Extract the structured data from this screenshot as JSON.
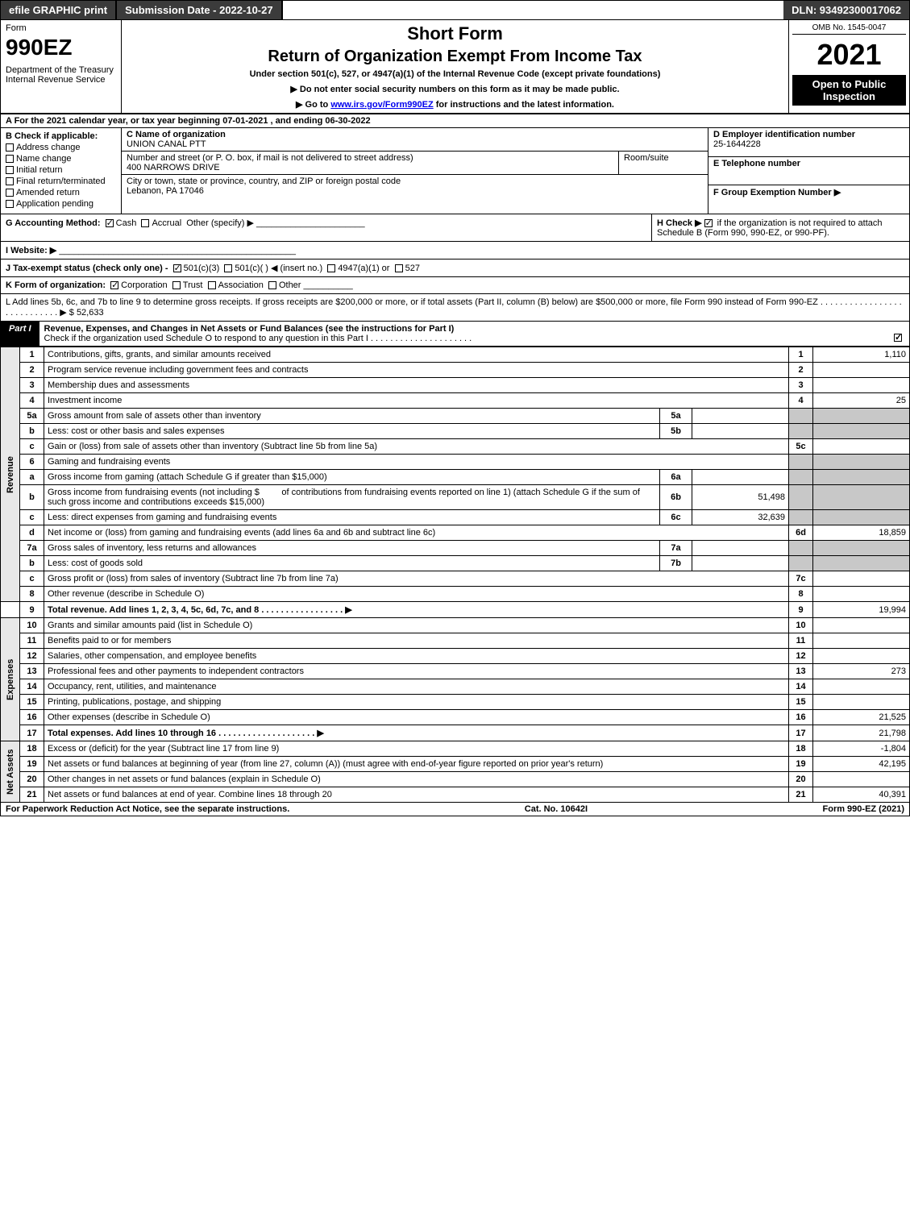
{
  "topbar": {
    "efile": "efile GRAPHIC print",
    "submission": "Submission Date - 2022-10-27",
    "dln": "DLN: 93492300017062"
  },
  "header": {
    "form_word": "Form",
    "form_code": "990EZ",
    "dept": "Department of the Treasury\nInternal Revenue Service",
    "short_form": "Short Form",
    "title": "Return of Organization Exempt From Income Tax",
    "under": "Under section 501(c), 527, or 4947(a)(1) of the Internal Revenue Code (except private foundations)",
    "arrow1": "▶ Do not enter social security numbers on this form as it may be made public.",
    "arrow2_pre": "▶ Go to ",
    "arrow2_link": "www.irs.gov/Form990EZ",
    "arrow2_post": " for instructions and the latest information.",
    "omb": "OMB No. 1545-0047",
    "year": "2021",
    "open": "Open to Public Inspection"
  },
  "sectionA": "A  For the 2021 calendar year, or tax year beginning 07-01-2021 , and ending 06-30-2022",
  "B": {
    "label": "B  Check if applicable:",
    "items": [
      "Address change",
      "Name change",
      "Initial return",
      "Final return/terminated",
      "Amended return",
      "Application pending"
    ]
  },
  "C": {
    "name_label": "C Name of organization",
    "name": "UNION CANAL PTT",
    "addr_label": "Number and street (or P. O. box, if mail is not delivered to street address)",
    "addr": "400 NARROWS DRIVE",
    "room_label": "Room/suite",
    "city_label": "City or town, state or province, country, and ZIP or foreign postal code",
    "city": "Lebanon, PA  17046"
  },
  "D": {
    "label": "D Employer identification number",
    "value": "25-1644228"
  },
  "E": {
    "label": "E Telephone number",
    "value": ""
  },
  "F": {
    "label": "F Group Exemption Number  ▶",
    "value": ""
  },
  "G": {
    "label": "G Accounting Method:",
    "cash": "Cash",
    "accrual": "Accrual",
    "other": "Other (specify) ▶"
  },
  "H": {
    "label": "H  Check ▶",
    "text": "if the organization is not required to attach Schedule B (Form 990, 990-EZ, or 990-PF)."
  },
  "I": {
    "label": "I Website: ▶",
    "value": ""
  },
  "J": {
    "label": "J Tax-exempt status (check only one) -",
    "opt1": "501(c)(3)",
    "opt2": "501(c)(  ) ◀ (insert no.)",
    "opt3": "4947(a)(1) or",
    "opt4": "527"
  },
  "K": {
    "label": "K Form of organization:",
    "opts": [
      "Corporation",
      "Trust",
      "Association",
      "Other"
    ]
  },
  "L": {
    "text": "L Add lines 5b, 6c, and 7b to line 9 to determine gross receipts. If gross receipts are $200,000 or more, or if total assets (Part II, column (B) below) are $500,000 or more, file Form 990 instead of Form 990-EZ . . . . . . . . . . . . . . . . . . . . . . . . . . . . ▶ $",
    "value": "52,633"
  },
  "part1": {
    "badge": "Part I",
    "title": "Revenue, Expenses, and Changes in Net Assets or Fund Balances (see the instructions for Part I)",
    "check_o": "Check if the organization used Schedule O to respond to any question in this Part I . . . . . . . . . . . . . . . . . . . . ."
  },
  "sidelabels": {
    "revenue": "Revenue",
    "expenses": "Expenses",
    "netassets": "Net Assets"
  },
  "lines": {
    "l1": {
      "no": "1",
      "desc": "Contributions, gifts, grants, and similar amounts received",
      "rn": "1",
      "val": "1,110"
    },
    "l2": {
      "no": "2",
      "desc": "Program service revenue including government fees and contracts",
      "rn": "2",
      "val": ""
    },
    "l3": {
      "no": "3",
      "desc": "Membership dues and assessments",
      "rn": "3",
      "val": ""
    },
    "l4": {
      "no": "4",
      "desc": "Investment income",
      "rn": "4",
      "val": "25"
    },
    "l5a": {
      "no": "5a",
      "desc": "Gross amount from sale of assets other than inventory",
      "sub": "5a",
      "subval": ""
    },
    "l5b": {
      "no": "b",
      "desc": "Less: cost or other basis and sales expenses",
      "sub": "5b",
      "subval": ""
    },
    "l5c": {
      "no": "c",
      "desc": "Gain or (loss) from sale of assets other than inventory (Subtract line 5b from line 5a)",
      "rn": "5c",
      "val": ""
    },
    "l6": {
      "no": "6",
      "desc": "Gaming and fundraising events"
    },
    "l6a": {
      "no": "a",
      "desc": "Gross income from gaming (attach Schedule G if greater than $15,000)",
      "sub": "6a",
      "subval": ""
    },
    "l6b": {
      "no": "b",
      "desc1": "Gross income from fundraising events (not including $",
      "desc2": "of contributions from fundraising events reported on line 1) (attach Schedule G if the sum of such gross income and contributions exceeds $15,000)",
      "sub": "6b",
      "subval": "51,498"
    },
    "l6c": {
      "no": "c",
      "desc": "Less: direct expenses from gaming and fundraising events",
      "sub": "6c",
      "subval": "32,639"
    },
    "l6d": {
      "no": "d",
      "desc": "Net income or (loss) from gaming and fundraising events (add lines 6a and 6b and subtract line 6c)",
      "rn": "6d",
      "val": "18,859"
    },
    "l7a": {
      "no": "7a",
      "desc": "Gross sales of inventory, less returns and allowances",
      "sub": "7a",
      "subval": ""
    },
    "l7b": {
      "no": "b",
      "desc": "Less: cost of goods sold",
      "sub": "7b",
      "subval": ""
    },
    "l7c": {
      "no": "c",
      "desc": "Gross profit or (loss) from sales of inventory (Subtract line 7b from line 7a)",
      "rn": "7c",
      "val": ""
    },
    "l8": {
      "no": "8",
      "desc": "Other revenue (describe in Schedule O)",
      "rn": "8",
      "val": ""
    },
    "l9": {
      "no": "9",
      "desc": "Total revenue. Add lines 1, 2, 3, 4, 5c, 6d, 7c, and 8  . . . . . . . . . . . . . . . . . ▶",
      "rn": "9",
      "val": "19,994"
    },
    "l10": {
      "no": "10",
      "desc": "Grants and similar amounts paid (list in Schedule O)",
      "rn": "10",
      "val": ""
    },
    "l11": {
      "no": "11",
      "desc": "Benefits paid to or for members",
      "rn": "11",
      "val": ""
    },
    "l12": {
      "no": "12",
      "desc": "Salaries, other compensation, and employee benefits",
      "rn": "12",
      "val": ""
    },
    "l13": {
      "no": "13",
      "desc": "Professional fees and other payments to independent contractors",
      "rn": "13",
      "val": "273"
    },
    "l14": {
      "no": "14",
      "desc": "Occupancy, rent, utilities, and maintenance",
      "rn": "14",
      "val": ""
    },
    "l15": {
      "no": "15",
      "desc": "Printing, publications, postage, and shipping",
      "rn": "15",
      "val": ""
    },
    "l16": {
      "no": "16",
      "desc": "Other expenses (describe in Schedule O)",
      "rn": "16",
      "val": "21,525"
    },
    "l17": {
      "no": "17",
      "desc": "Total expenses. Add lines 10 through 16    . . . . . . . . . . . . . . . . . . . . ▶",
      "rn": "17",
      "val": "21,798"
    },
    "l18": {
      "no": "18",
      "desc": "Excess or (deficit) for the year (Subtract line 17 from line 9)",
      "rn": "18",
      "val": "-1,804"
    },
    "l19": {
      "no": "19",
      "desc": "Net assets or fund balances at beginning of year (from line 27, column (A)) (must agree with end-of-year figure reported on prior year's return)",
      "rn": "19",
      "val": "42,195"
    },
    "l20": {
      "no": "20",
      "desc": "Other changes in net assets or fund balances (explain in Schedule O)",
      "rn": "20",
      "val": ""
    },
    "l21": {
      "no": "21",
      "desc": "Net assets or fund balances at end of year. Combine lines 18 through 20",
      "rn": "21",
      "val": "40,391"
    }
  },
  "footer": {
    "left": "For Paperwork Reduction Act Notice, see the separate instructions.",
    "center": "Cat. No. 10642I",
    "right": "Form 990-EZ (2021)"
  },
  "colors": {
    "dark": "#3b3b3b",
    "black": "#000000",
    "shade": "#c8c8c8",
    "side": "#e8e8e8"
  }
}
